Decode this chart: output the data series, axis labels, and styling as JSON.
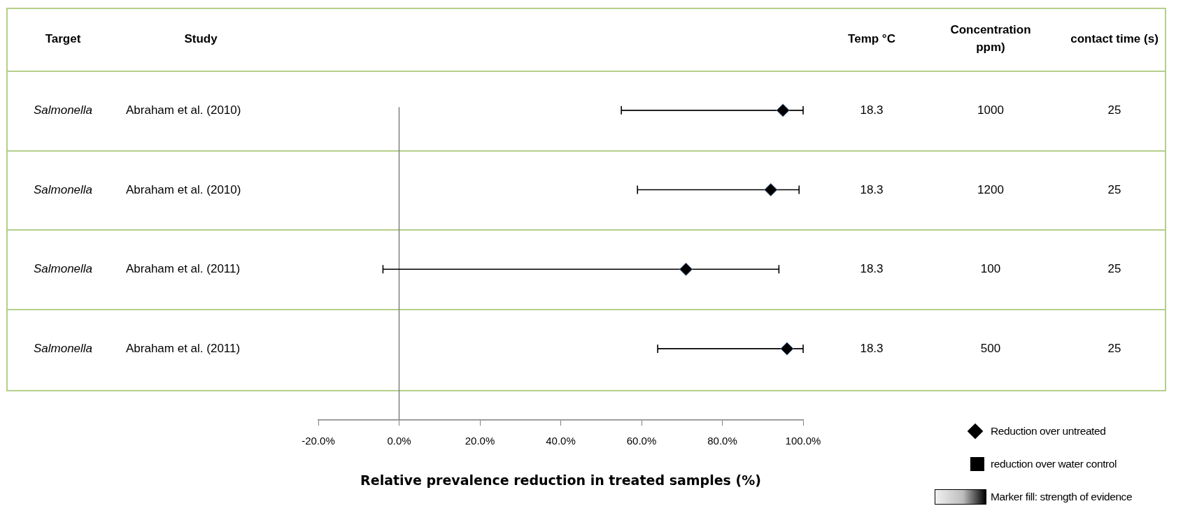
{
  "chart_data": {
    "type": "scatter",
    "orientation": "horizontal",
    "categories": [
      "Abraham et al. (2010)",
      "Abraham et al. (2010)",
      "Abraham et al. (2011)",
      "Abraham et al. (2011)"
    ],
    "series": [
      {
        "name": "Reduction over untreated",
        "color": "#000000",
        "values": [
          95,
          92,
          71,
          96
        ],
        "errors": [
          [
            55,
            100
          ],
          [
            59,
            99
          ],
          [
            -4,
            94
          ],
          [
            64,
            100
          ]
        ]
      }
    ],
    "marker": "diamond",
    "xlim": [
      -20,
      100
    ],
    "xticks": [
      {
        "value": -20,
        "label": "-20.0%"
      },
      {
        "value": 0,
        "label": "0.0%"
      },
      {
        "value": 20,
        "label": "20.0%"
      },
      {
        "value": 40,
        "label": "40.0%"
      },
      {
        "value": 60,
        "label": "60.0%"
      },
      {
        "value": 80,
        "label": "80.0%"
      },
      {
        "value": 100,
        "label": "100.0%"
      }
    ],
    "xlabel": "Relative prevalence reduction in treated samples (%)",
    "ref_lines": [
      {
        "axis": "x",
        "value": 0,
        "color": "#808080"
      }
    ],
    "legend": "bottom right",
    "annotations": [
      "Target",
      "Study",
      "Temp °C",
      "Concentration ppm)",
      "contact time (s)",
      "Salmonella",
      "18.3",
      "1000",
      "25",
      "Salmonella",
      "18.3",
      "1200",
      "25",
      "Salmonella",
      "18.3",
      "100",
      "25",
      "Salmonella",
      "18.3",
      "500",
      "25",
      "reduction over water control",
      "Marker fill: strength of evidence"
    ]
  }
}
